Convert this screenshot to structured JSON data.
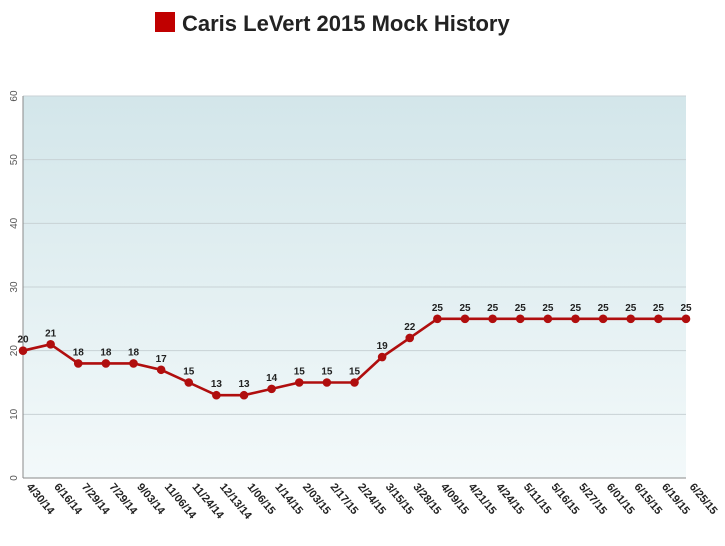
{
  "chart_data": {
    "type": "line",
    "title": "Caris LeVert 2015 Mock History",
    "xlabel": "",
    "ylabel": "",
    "ylim": [
      0,
      60
    ],
    "yticks": [
      0,
      10,
      20,
      30,
      40,
      50,
      60
    ],
    "grid": true,
    "legend": "none",
    "colors": {
      "series": "#b00e0e",
      "title_marker": "#c00000",
      "plot_bg_top": "#d3e6ea",
      "plot_bg_bottom": "#f3f9fa",
      "grid": "#c8d2d5"
    },
    "categories": [
      "4/30/14",
      "6/16/14",
      "7/29/14",
      "7/29/14",
      "9/03/14",
      "11/06/14",
      "11/24/14",
      "12/13/14",
      "1/06/15",
      "1/14/15",
      "2/03/15",
      "2/17/15",
      "2/24/15",
      "3/15/15",
      "3/28/15",
      "4/09/15",
      "4/21/15",
      "4/24/15",
      "5/11/15",
      "5/16/15",
      "5/27/15",
      "6/01/15",
      "6/15/15",
      "6/19/15",
      "6/25/15"
    ],
    "series": [
      {
        "values": [
          20,
          21,
          18,
          18,
          18,
          17,
          15,
          13,
          13,
          14,
          15,
          15,
          15,
          19,
          22,
          25,
          25,
          25,
          25,
          25,
          25,
          25,
          25,
          25,
          25
        ]
      }
    ]
  }
}
